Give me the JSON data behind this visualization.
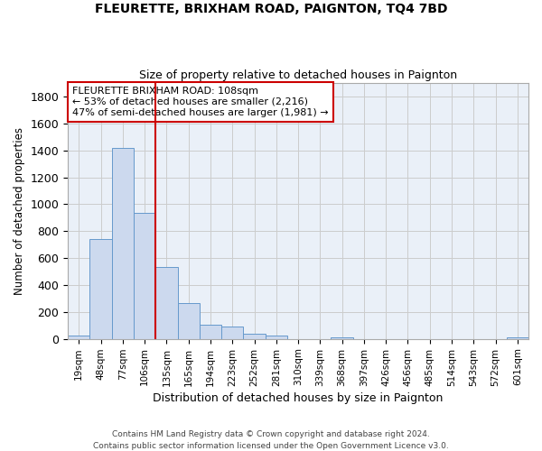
{
  "title": "FLEURETTE, BRIXHAM ROAD, PAIGNTON, TQ4 7BD",
  "subtitle": "Size of property relative to detached houses in Paignton",
  "xlabel": "Distribution of detached houses by size in Paignton",
  "ylabel": "Number of detached properties",
  "footer": "Contains HM Land Registry data © Crown copyright and database right 2024.\nContains public sector information licensed under the Open Government Licence v3.0.",
  "categories": [
    "19sqm",
    "48sqm",
    "77sqm",
    "106sqm",
    "135sqm",
    "165sqm",
    "194sqm",
    "223sqm",
    "252sqm",
    "281sqm",
    "310sqm",
    "339sqm",
    "368sqm",
    "397sqm",
    "426sqm",
    "456sqm",
    "485sqm",
    "514sqm",
    "543sqm",
    "572sqm",
    "601sqm"
  ],
  "values": [
    22,
    743,
    1421,
    938,
    533,
    266,
    104,
    93,
    38,
    27,
    0,
    0,
    14,
    0,
    0,
    0,
    0,
    0,
    0,
    0,
    14
  ],
  "bar_color": "#ccd9ee",
  "bar_edge_color": "#6699cc",
  "grid_color": "#cccccc",
  "plot_bg_color": "#eaf0f8",
  "background_color": "#ffffff",
  "property_bar_index": 3,
  "vline_color": "#cc0000",
  "annotation_line1": "FLEURETTE BRIXHAM ROAD: 108sqm",
  "annotation_line2": "← 53% of detached houses are smaller (2,216)",
  "annotation_line3": "47% of semi-detached houses are larger (1,981) →",
  "annotation_box_edgecolor": "#cc0000",
  "ylim_max": 1900,
  "yticks": [
    0,
    200,
    400,
    600,
    800,
    1000,
    1200,
    1400,
    1600,
    1800
  ]
}
